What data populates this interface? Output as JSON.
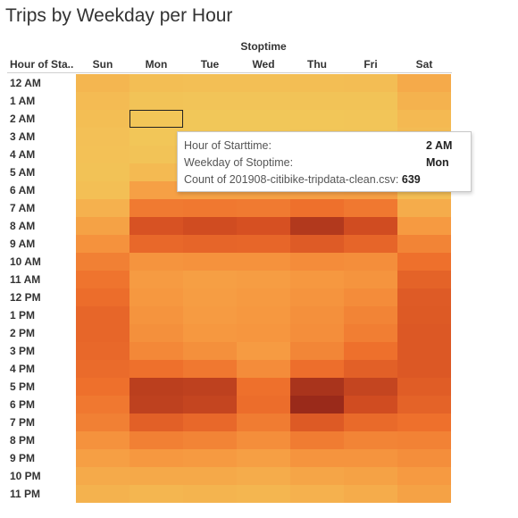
{
  "chart_data": {
    "type": "heatmap",
    "title": "Trips by Weekday per Hour",
    "column_group_label": "Stoptime",
    "row_header": "Hour of Sta..",
    "columns": [
      "Sun",
      "Mon",
      "Tue",
      "Wed",
      "Thu",
      "Fri",
      "Sat"
    ],
    "rows": [
      "12 AM",
      "1 AM",
      "2 AM",
      "3 AM",
      "4 AM",
      "5 AM",
      "6 AM",
      "7 AM",
      "8 AM",
      "9 AM",
      "10 AM",
      "11 AM",
      "12 PM",
      "1 PM",
      "2 PM",
      "3 PM",
      "4 PM",
      "5 PM",
      "6 PM",
      "7 PM",
      "8 PM",
      "9 PM",
      "10 PM",
      "11 PM"
    ],
    "color_scale": {
      "low": "#f1c95a",
      "high": "#9a2a1a"
    },
    "intensity": [
      [
        0.22,
        0.14,
        0.12,
        0.13,
        0.14,
        0.15,
        0.29
      ],
      [
        0.17,
        0.07,
        0.06,
        0.06,
        0.07,
        0.08,
        0.24
      ],
      [
        0.14,
        0.04,
        0.03,
        0.03,
        0.04,
        0.05,
        0.2
      ],
      [
        0.11,
        0.04,
        0.03,
        0.03,
        0.04,
        0.05,
        0.16
      ],
      [
        0.1,
        0.08,
        0.07,
        0.07,
        0.08,
        0.09,
        0.14
      ],
      [
        0.09,
        0.19,
        0.17,
        0.17,
        0.18,
        0.19,
        0.13
      ],
      [
        0.12,
        0.35,
        0.34,
        0.34,
        0.35,
        0.36,
        0.15
      ],
      [
        0.25,
        0.55,
        0.56,
        0.55,
        0.6,
        0.56,
        0.28
      ],
      [
        0.34,
        0.79,
        0.82,
        0.8,
        0.92,
        0.82,
        0.39
      ],
      [
        0.43,
        0.65,
        0.67,
        0.66,
        0.73,
        0.67,
        0.5
      ],
      [
        0.52,
        0.42,
        0.43,
        0.43,
        0.46,
        0.45,
        0.6
      ],
      [
        0.58,
        0.38,
        0.36,
        0.37,
        0.4,
        0.42,
        0.68
      ],
      [
        0.62,
        0.4,
        0.37,
        0.39,
        0.42,
        0.46,
        0.73
      ],
      [
        0.66,
        0.42,
        0.38,
        0.4,
        0.44,
        0.5,
        0.74
      ],
      [
        0.66,
        0.44,
        0.4,
        0.41,
        0.45,
        0.53,
        0.75
      ],
      [
        0.65,
        0.48,
        0.44,
        0.38,
        0.49,
        0.6,
        0.75
      ],
      [
        0.63,
        0.6,
        0.56,
        0.46,
        0.61,
        0.7,
        0.75
      ],
      [
        0.6,
        0.89,
        0.88,
        0.6,
        0.95,
        0.86,
        0.72
      ],
      [
        0.56,
        0.88,
        0.86,
        0.62,
        1.0,
        0.82,
        0.68
      ],
      [
        0.52,
        0.7,
        0.65,
        0.54,
        0.74,
        0.64,
        0.6
      ],
      [
        0.43,
        0.52,
        0.5,
        0.45,
        0.54,
        0.5,
        0.51
      ],
      [
        0.36,
        0.4,
        0.39,
        0.36,
        0.42,
        0.42,
        0.45
      ],
      [
        0.29,
        0.3,
        0.3,
        0.28,
        0.32,
        0.34,
        0.39
      ],
      [
        0.24,
        0.22,
        0.23,
        0.22,
        0.25,
        0.28,
        0.34
      ]
    ],
    "selected_cell": {
      "row": "2 AM",
      "column": "Mon"
    }
  },
  "tooltip": {
    "rows": [
      {
        "key": "Hour of Starttime:",
        "value": "2 AM"
      },
      {
        "key": "Weekday of Stoptime:",
        "value": "Mon"
      },
      {
        "key": "Count of 201908-citibike-tripdata-clean.csv:",
        "value": "639"
      }
    ]
  }
}
